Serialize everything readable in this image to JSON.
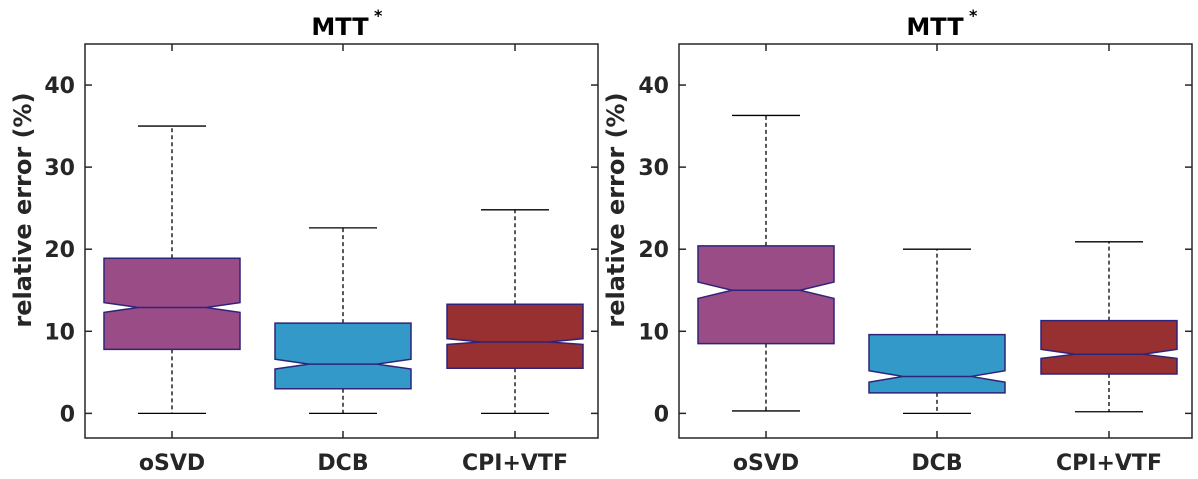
{
  "chart_data": [
    {
      "type": "boxplot",
      "title": "MTT",
      "title_superscript": "*",
      "ylabel": "relative error (%)",
      "ylim": [
        -3,
        45
      ],
      "yticks": [
        0,
        10,
        20,
        30,
        40
      ],
      "notched": true,
      "grid": false,
      "categories": [
        "oSVD",
        "DCB",
        "CPI+VTF"
      ],
      "boxes": [
        {
          "name": "oSVD",
          "whisker_low": 0,
          "q1": 7.8,
          "notch_low": 12.3,
          "median": 12.9,
          "notch_high": 13.5,
          "q3": 18.9,
          "whisker_high": 35.0,
          "color": "#9a4c87"
        },
        {
          "name": "DCB",
          "whisker_low": 0,
          "q1": 3.0,
          "notch_low": 5.4,
          "median": 6.0,
          "notch_high": 6.6,
          "q3": 11.0,
          "whisker_high": 22.6,
          "color": "#3399c8"
        },
        {
          "name": "CPI+VTF",
          "whisker_low": 0,
          "q1": 5.5,
          "notch_low": 8.4,
          "median": 8.7,
          "notch_high": 9.1,
          "q3": 13.3,
          "whisker_high": 24.8,
          "color": "#982f30"
        }
      ]
    },
    {
      "type": "boxplot",
      "title": "MTT",
      "title_superscript": "*",
      "ylabel": "relative error (%)",
      "ylim": [
        -3,
        45
      ],
      "yticks": [
        0,
        10,
        20,
        30,
        40
      ],
      "notched": true,
      "grid": false,
      "categories": [
        "oSVD",
        "DCB",
        "CPI+VTF"
      ],
      "boxes": [
        {
          "name": "oSVD",
          "whisker_low": 0.3,
          "q1": 8.5,
          "notch_low": 14.0,
          "median": 15.0,
          "notch_high": 16.0,
          "q3": 20.4,
          "whisker_high": 36.3,
          "color": "#9a4c87"
        },
        {
          "name": "DCB",
          "whisker_low": 0,
          "q1": 2.5,
          "notch_low": 3.8,
          "median": 4.5,
          "notch_high": 5.2,
          "q3": 9.6,
          "whisker_high": 20.0,
          "color": "#3399c8"
        },
        {
          "name": "CPI+VTF",
          "whisker_low": 0.2,
          "q1": 4.8,
          "notch_low": 6.7,
          "median": 7.2,
          "notch_high": 7.8,
          "q3": 11.3,
          "whisker_high": 20.9,
          "color": "#982f30"
        }
      ]
    }
  ],
  "colors": {
    "box_edge": "#2e2478",
    "median_line": "#2e2478",
    "whisker": "#000000",
    "axis": "#262626"
  }
}
